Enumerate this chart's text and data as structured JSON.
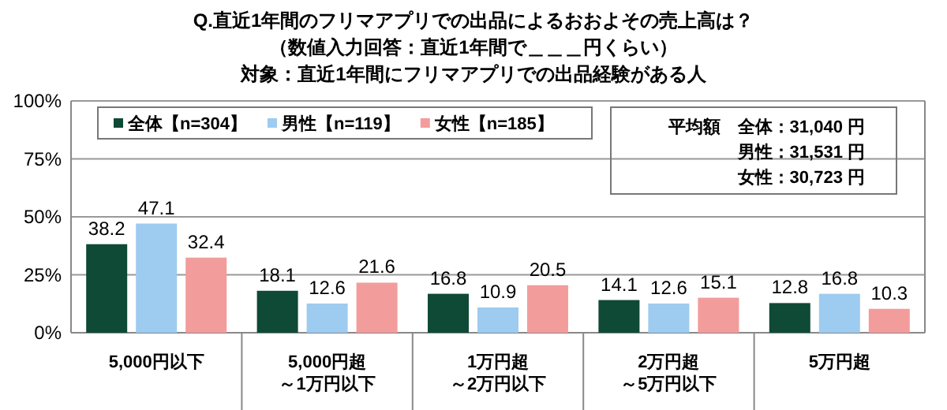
{
  "chart_data": {
    "type": "bar",
    "title": "Q.直近1年間のフリマアプリでの出品によるおおよその売上高は？",
    "subtitle": "（数値入力回答：直近1年間で＿＿＿円くらい）",
    "annotations": [
      "対象：直近1年間にフリマアプリでの出品経験がある人",
      "平均額　全体：31,040 円",
      "男性：31,531 円",
      "女性：30,723 円"
    ],
    "categories": [
      "5,000円以下",
      "5,000円超～1万円以下",
      "1万円超～2万円以下",
      "2万円超～5万円以下",
      "5万円超"
    ],
    "series": [
      {
        "name": "全体【n=304】",
        "color": "#0e4a35",
        "values": [
          38.2,
          18.1,
          16.8,
          14.1,
          12.8
        ]
      },
      {
        "name": "男性【n=119】",
        "color": "#9ecbf0",
        "values": [
          47.1,
          12.6,
          10.9,
          12.6,
          16.8
        ]
      },
      {
        "name": "女性【n=185】",
        "color": "#f39c9c",
        "values": [
          32.4,
          21.6,
          20.5,
          15.1,
          10.3
        ]
      }
    ],
    "ylim": [
      0,
      100
    ],
    "yticks": [
      {
        "value": 0,
        "label": "0%"
      },
      {
        "value": 25,
        "label": "25%"
      },
      {
        "value": 50,
        "label": "50%"
      },
      {
        "value": 75,
        "label": "75%"
      },
      {
        "value": 100,
        "label": "100%"
      }
    ],
    "grid": "y",
    "legend": "top left",
    "data_labels": true
  }
}
